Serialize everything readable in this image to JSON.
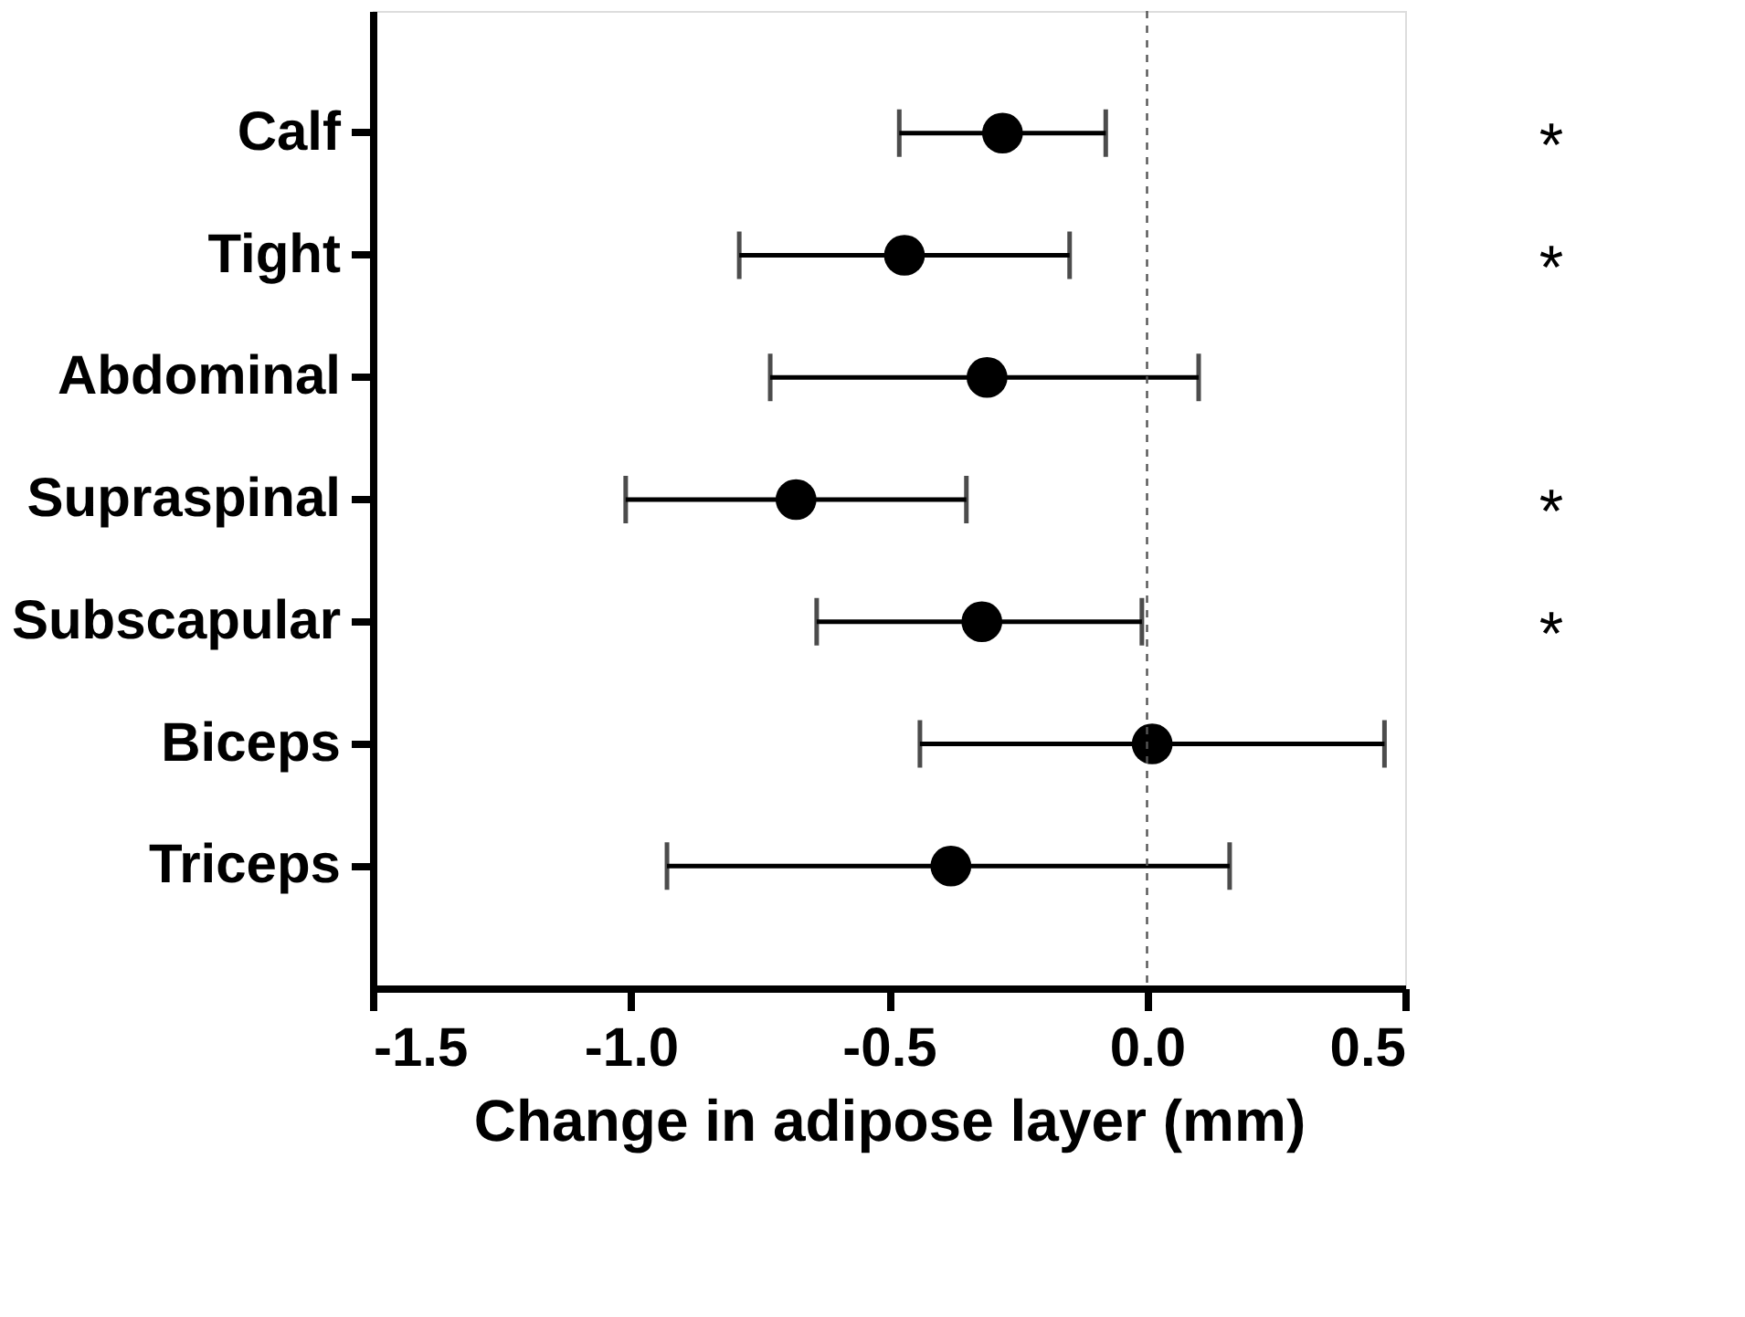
{
  "chart_data": {
    "type": "scatter",
    "orientation": "horizontal",
    "xlabel": "Change in adipose layer (mm)",
    "categories": [
      "Calf",
      "Tight",
      "Abdominal",
      "Supraspinal",
      "Subscapular",
      "Biceps",
      "Triceps"
    ],
    "values": [
      -0.28,
      -0.47,
      -0.31,
      -0.68,
      -0.32,
      0.01,
      -0.38
    ],
    "errors": [
      [
        -0.48,
        -0.08
      ],
      [
        -0.79,
        -0.15
      ],
      [
        -0.73,
        0.1
      ],
      [
        -1.01,
        -0.35
      ],
      [
        -0.64,
        -0.01
      ],
      [
        -0.44,
        0.46
      ],
      [
        -0.93,
        0.16
      ]
    ],
    "color": "#000000",
    "marker": "circle",
    "grid": false,
    "value_labels": [
      "*",
      "*",
      null,
      "*",
      "*",
      null,
      null
    ],
    "xlim": [
      -1.5,
      0.5
    ],
    "xticks": [
      -1.5,
      {
        "value": -1,
        "label": "-1.0"
      },
      -0.5,
      {
        "value": 0,
        "label": "0.0"
      },
      0.5
    ],
    "ref_lines": [
      {
        "axis": "x",
        "value": 0,
        "color": "#555555",
        "line_style": "dashed"
      }
    ]
  }
}
